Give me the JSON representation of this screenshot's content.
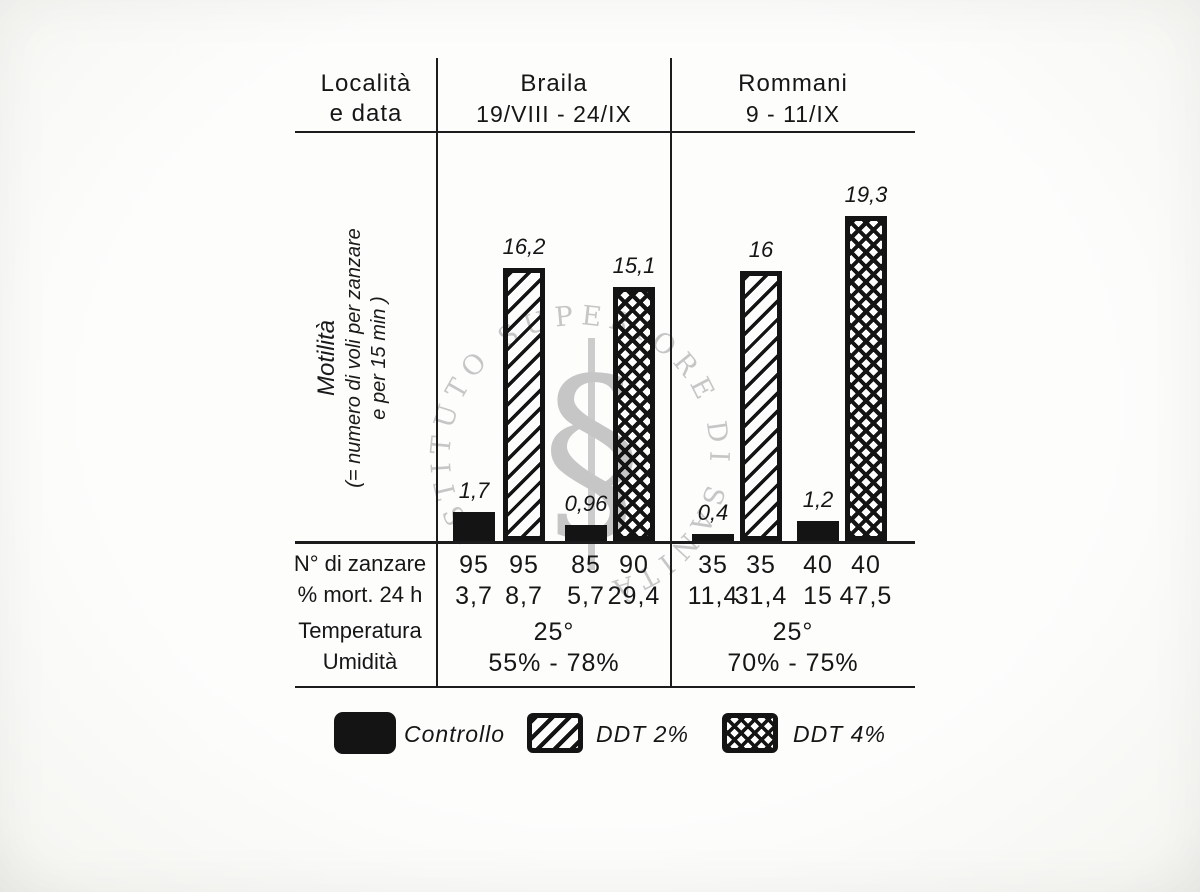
{
  "labels": {
    "locality_line1": "Località",
    "locality_line2": "e data",
    "motility_line1": "Motilità",
    "motility_line2": "(= numero di voli per zanzare",
    "motility_line3": "e per 15 min )"
  },
  "table": {
    "row_labels": [
      "N° di zanzare",
      "% mort. 24 h",
      "Temperatura",
      "Umidità"
    ]
  },
  "legend": {
    "items": [
      {
        "label": "Controllo",
        "pattern": "solid-black"
      },
      {
        "label": "DDT 2%",
        "pattern": "diagonal-hatch"
      },
      {
        "label": "DDT 4%",
        "pattern": "crosshatch"
      }
    ]
  },
  "watermark": {
    "circle_text": "ISTITUTO SUPERIORE DI SANITÀ",
    "symbol": "serpent-staff-seal",
    "color": "#c6c6c6"
  },
  "colors": {
    "ink": "#191919",
    "paper": "#fbfbf8",
    "watermark": "#c6c6c6"
  },
  "chart_data": {
    "type": "bar",
    "title": "",
    "ylabel": "Motilità (= numero di voli per zanzare e per 15 min)",
    "ylim": [
      0,
      20
    ],
    "grid": false,
    "legend_position": "bottom",
    "series_names": [
      "Controllo",
      "DDT 2%",
      "DDT 4%"
    ],
    "groups": [
      {
        "location": "Braila",
        "date": "19/VIII - 24/IX",
        "temperatura": "25°",
        "umidita": "55% - 78%",
        "bars": [
          {
            "series": "Controllo",
            "motilita": 1.7,
            "label": "1,7",
            "n_zanzare": "95",
            "mort_24h": "3,7"
          },
          {
            "series": "DDT 2%",
            "motilita": 16.2,
            "label": "16,2",
            "n_zanzare": "95",
            "mort_24h": "8,7"
          },
          {
            "series": "Controllo",
            "motilita": 0.96,
            "label": "0,96",
            "n_zanzare": "85",
            "mort_24h": "5,7"
          },
          {
            "series": "DDT 4%",
            "motilita": 15.1,
            "label": "15,1",
            "n_zanzare": "90",
            "mort_24h": "29,4"
          }
        ]
      },
      {
        "location": "Rommani",
        "date": "9 - 11/IX",
        "temperatura": "25°",
        "umidita": "70% - 75%",
        "bars": [
          {
            "series": "Controllo",
            "motilita": 0.4,
            "label": "0,4",
            "n_zanzare": "35",
            "mort_24h": "11,4"
          },
          {
            "series": "DDT 2%",
            "motilita": 16,
            "label": "16",
            "n_zanzare": "35",
            "mort_24h": "31,4"
          },
          {
            "series": "Controllo",
            "motilita": 1.2,
            "label": "1,2",
            "n_zanzare": "40",
            "mort_24h": "15"
          },
          {
            "series": "DDT 4%",
            "motilita": 19.3,
            "label": "19,3",
            "n_zanzare": "40",
            "mort_24h": "47,5"
          }
        ]
      }
    ]
  }
}
